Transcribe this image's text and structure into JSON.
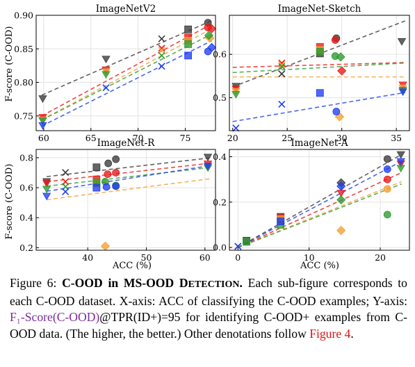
{
  "shared": {
    "ylabel": "F-score (C-OOD)",
    "xlabel": "ACC (%)"
  },
  "series_colors": {
    "black": "#3a3a3a",
    "red": "#e81818",
    "orange": "#f3a030",
    "green": "#2e9a2e",
    "blue": "#1f3ef0"
  },
  "caption": {
    "fig": "Figure 6:",
    "title_a": "C-OOD in MS-OOD D",
    "title_b": "ETECTION",
    "title_c": ".",
    "body1": " Each sub-figure corresponds to each C-OOD dataset. X-axis: ACC of classifying the C-OOD examples; Y-axis: ",
    "metric": "F₁-Score(C-OOD)",
    "body2": "@TPR(ID+)=95 for identifying C-OOD+ examples from C-OOD data. (The higher, the better.) Other denotations follow ",
    "ref": "Figure 4",
    "end": "."
  },
  "chart_data": [
    {
      "type": "scatter",
      "title": "ImageNetV2",
      "xlim": [
        59.2,
        78.2
      ],
      "ylim": [
        0.728,
        0.9
      ],
      "xticks": [
        "60",
        "65",
        "70",
        "75"
      ],
      "xtick_values": [
        60,
        65,
        70,
        75
      ],
      "yticks": [
        "0.75",
        "0.80",
        "0.85",
        "0.90"
      ],
      "ytick_values": [
        0.75,
        0.8,
        0.85,
        0.9
      ],
      "trends": [
        {
          "color": "black",
          "x": [
            59.8,
            77.8
          ],
          "y": [
            0.781,
            0.892
          ]
        },
        {
          "color": "red",
          "x": [
            59.8,
            77.8
          ],
          "y": [
            0.75,
            0.887
          ]
        },
        {
          "color": "orange",
          "x": [
            59.8,
            77.8
          ],
          "y": [
            0.744,
            0.88
          ]
        },
        {
          "color": "green",
          "x": [
            59.8,
            77.8
          ],
          "y": [
            0.744,
            0.872
          ]
        },
        {
          "color": "blue",
          "x": [
            59.8,
            77.8
          ],
          "y": [
            0.735,
            0.862
          ]
        }
      ],
      "points": [
        {
          "color": "black",
          "marker": "tri-down",
          "x": 59.9,
          "y": 0.776
        },
        {
          "color": "black",
          "marker": "tri-down",
          "x": 66.6,
          "y": 0.835
        },
        {
          "color": "black",
          "marker": "x",
          "x": 72.5,
          "y": 0.865
        },
        {
          "color": "black",
          "marker": "square",
          "x": 75.3,
          "y": 0.879
        },
        {
          "color": "black",
          "marker": "circle",
          "x": 77.4,
          "y": 0.889
        },
        {
          "color": "red",
          "marker": "tri-down",
          "x": 59.9,
          "y": 0.748
        },
        {
          "color": "red",
          "marker": "tri-down",
          "x": 66.6,
          "y": 0.819
        },
        {
          "color": "red",
          "marker": "x",
          "x": 72.5,
          "y": 0.851
        },
        {
          "color": "red",
          "marker": "square",
          "x": 75.3,
          "y": 0.867
        },
        {
          "color": "red",
          "marker": "circle",
          "x": 77.4,
          "y": 0.882
        },
        {
          "color": "red",
          "marker": "diamond",
          "x": 77.8,
          "y": 0.88
        },
        {
          "color": "orange",
          "marker": "tri-down",
          "x": 59.9,
          "y": 0.744
        },
        {
          "color": "orange",
          "marker": "tri-down",
          "x": 66.6,
          "y": 0.816
        },
        {
          "color": "orange",
          "marker": "x",
          "x": 72.5,
          "y": 0.848
        },
        {
          "color": "orange",
          "marker": "square",
          "x": 75.3,
          "y": 0.862
        },
        {
          "color": "orange",
          "marker": "diamond",
          "x": 77.6,
          "y": 0.866
        },
        {
          "color": "green",
          "marker": "tri-down",
          "x": 59.9,
          "y": 0.743
        },
        {
          "color": "green",
          "marker": "tri-down",
          "x": 66.6,
          "y": 0.812
        },
        {
          "color": "green",
          "marker": "x",
          "x": 72.5,
          "y": 0.84
        },
        {
          "color": "green",
          "marker": "square",
          "x": 75.3,
          "y": 0.857
        },
        {
          "color": "green",
          "marker": "diamond",
          "x": 77.5,
          "y": 0.87
        },
        {
          "color": "blue",
          "marker": "tri-down",
          "x": 59.9,
          "y": 0.736
        },
        {
          "color": "blue",
          "marker": "x",
          "x": 66.6,
          "y": 0.792
        },
        {
          "color": "blue",
          "marker": "x",
          "x": 72.5,
          "y": 0.824
        },
        {
          "color": "blue",
          "marker": "square",
          "x": 75.3,
          "y": 0.84
        },
        {
          "color": "blue",
          "marker": "circle",
          "x": 77.4,
          "y": 0.846
        },
        {
          "color": "blue",
          "marker": "diamond",
          "x": 77.8,
          "y": 0.852
        }
      ]
    },
    {
      "type": "scatter",
      "title": "ImageNet-Sketch",
      "xlim": [
        19.7,
        36.2
      ],
      "ylim": [
        0.424,
        0.69
      ],
      "xticks": [
        "20",
        "25",
        "30",
        "35"
      ],
      "xtick_values": [
        20,
        25,
        30,
        35
      ],
      "yticks": [
        "0.5",
        "0.6"
      ],
      "ytick_values": [
        0.5,
        0.6
      ],
      "trends": [
        {
          "color": "black",
          "x": [
            20,
            35.8
          ],
          "y": [
            0.525,
            0.677
          ]
        },
        {
          "color": "red",
          "x": [
            20,
            35.8
          ],
          "y": [
            0.57,
            0.581
          ]
        },
        {
          "color": "green",
          "x": [
            20,
            35.8
          ],
          "y": [
            0.558,
            0.58
          ]
        },
        {
          "color": "orange",
          "x": [
            20,
            35.8
          ],
          "y": [
            0.548,
            0.548
          ]
        },
        {
          "color": "blue",
          "x": [
            20,
            35.8
          ],
          "y": [
            0.445,
            0.512
          ]
        }
      ],
      "points": [
        {
          "color": "black",
          "marker": "tri-down",
          "x": 20.3,
          "y": 0.527
        },
        {
          "color": "black",
          "marker": "x",
          "x": 24.5,
          "y": 0.555
        },
        {
          "color": "black",
          "marker": "square",
          "x": 28.0,
          "y": 0.602
        },
        {
          "color": "black",
          "marker": "circle",
          "x": 29.5,
          "y": 0.637
        },
        {
          "color": "black",
          "marker": "tri-down",
          "x": 35.5,
          "y": 0.63
        },
        {
          "color": "red",
          "marker": "tri-down",
          "x": 20.3,
          "y": 0.521
        },
        {
          "color": "red",
          "marker": "x",
          "x": 24.5,
          "y": 0.58
        },
        {
          "color": "red",
          "marker": "square",
          "x": 28.0,
          "y": 0.617
        },
        {
          "color": "red",
          "marker": "circle",
          "x": 29.4,
          "y": 0.633
        },
        {
          "color": "red",
          "marker": "diamond",
          "x": 30.0,
          "y": 0.562
        },
        {
          "color": "red",
          "marker": "tri-down",
          "x": 35.6,
          "y": 0.53
        },
        {
          "color": "orange",
          "marker": "tri-down",
          "x": 20.3,
          "y": 0.515
        },
        {
          "color": "orange",
          "marker": "x",
          "x": 24.5,
          "y": 0.576
        },
        {
          "color": "orange",
          "marker": "square",
          "x": 28.0,
          "y": 0.61
        },
        {
          "color": "orange",
          "marker": "diamond",
          "x": 29.8,
          "y": 0.456
        },
        {
          "color": "orange",
          "marker": "tri-down",
          "x": 35.6,
          "y": 0.523
        },
        {
          "color": "green",
          "marker": "tri-down",
          "x": 20.3,
          "y": 0.508
        },
        {
          "color": "green",
          "marker": "x",
          "x": 24.5,
          "y": 0.572
        },
        {
          "color": "green",
          "marker": "square",
          "x": 28.0,
          "y": 0.606
        },
        {
          "color": "green",
          "marker": "circle",
          "x": 29.4,
          "y": 0.596
        },
        {
          "color": "green",
          "marker": "diamond",
          "x": 29.9,
          "y": 0.594
        },
        {
          "color": "green",
          "marker": "tri-down",
          "x": 35.6,
          "y": 0.518
        },
        {
          "color": "blue",
          "marker": "x",
          "x": 20.3,
          "y": 0.43
        },
        {
          "color": "blue",
          "marker": "x",
          "x": 24.5,
          "y": 0.485
        },
        {
          "color": "blue",
          "marker": "square",
          "x": 28.0,
          "y": 0.511
        },
        {
          "color": "blue",
          "marker": "circle",
          "x": 29.5,
          "y": 0.468
        },
        {
          "color": "blue",
          "marker": "tri-down",
          "x": 35.6,
          "y": 0.514
        }
      ]
    },
    {
      "type": "scatter",
      "title": "ImageNet-R",
      "xlim": [
        31.2,
        61.8
      ],
      "ylim": [
        0.183,
        0.855
      ],
      "xticks": [
        "40",
        "50",
        "60"
      ],
      "xtick_values": [
        40,
        50,
        60
      ],
      "yticks": [
        "0.2",
        "0.4",
        "0.6",
        "0.8"
      ],
      "ytick_values": [
        0.2,
        0.4,
        0.6,
        0.8
      ],
      "trends": [
        {
          "color": "black",
          "x": [
            33,
            61
          ],
          "y": [
            0.674,
            0.799
          ]
        },
        {
          "color": "red",
          "x": [
            33,
            61
          ],
          "y": [
            0.64,
            0.764
          ]
        },
        {
          "color": "green",
          "x": [
            33,
            61
          ],
          "y": [
            0.61,
            0.735
          ]
        },
        {
          "color": "blue",
          "x": [
            33,
            61
          ],
          "y": [
            0.576,
            0.748
          ]
        },
        {
          "color": "orange",
          "x": [
            33,
            61
          ],
          "y": [
            0.52,
            0.66
          ]
        }
      ],
      "points": [
        {
          "color": "black",
          "marker": "tri-down",
          "x": 33.0,
          "y": 0.642
        },
        {
          "color": "black",
          "marker": "x",
          "x": 36.2,
          "y": 0.701
        },
        {
          "color": "black",
          "marker": "square",
          "x": 41.5,
          "y": 0.736
        },
        {
          "color": "black",
          "marker": "circle",
          "x": 43.5,
          "y": 0.762
        },
        {
          "color": "black",
          "marker": "circle",
          "x": 44.8,
          "y": 0.79
        },
        {
          "color": "black",
          "marker": "tri-down",
          "x": 60.5,
          "y": 0.805
        },
        {
          "color": "red",
          "marker": "tri-down",
          "x": 33.0,
          "y": 0.63
        },
        {
          "color": "red",
          "marker": "x",
          "x": 36.2,
          "y": 0.64
        },
        {
          "color": "red",
          "marker": "square",
          "x": 41.5,
          "y": 0.655
        },
        {
          "color": "red",
          "marker": "circle",
          "x": 43.4,
          "y": 0.69
        },
        {
          "color": "red",
          "marker": "circle",
          "x": 44.8,
          "y": 0.7
        },
        {
          "color": "red",
          "marker": "tri-down",
          "x": 60.5,
          "y": 0.76
        },
        {
          "color": "orange",
          "marker": "diamond",
          "x": 43.0,
          "y": 0.21
        },
        {
          "color": "orange",
          "marker": "square",
          "x": 41.5,
          "y": 0.63
        },
        {
          "color": "green",
          "marker": "tri-down",
          "x": 33.0,
          "y": 0.592
        },
        {
          "color": "green",
          "marker": "x",
          "x": 36.2,
          "y": 0.607
        },
        {
          "color": "green",
          "marker": "square",
          "x": 41.5,
          "y": 0.635
        },
        {
          "color": "green",
          "marker": "circle",
          "x": 43.0,
          "y": 0.64
        },
        {
          "color": "green",
          "marker": "circle",
          "x": 44.8,
          "y": 0.614
        },
        {
          "color": "green",
          "marker": "tri-down",
          "x": 60.5,
          "y": 0.734
        },
        {
          "color": "blue",
          "marker": "tri-down",
          "x": 33.0,
          "y": 0.545
        },
        {
          "color": "blue",
          "marker": "x",
          "x": 36.2,
          "y": 0.573
        },
        {
          "color": "blue",
          "marker": "square",
          "x": 41.5,
          "y": 0.6
        },
        {
          "color": "blue",
          "marker": "circle",
          "x": 43.2,
          "y": 0.605
        },
        {
          "color": "blue",
          "marker": "circle",
          "x": 44.8,
          "y": 0.61
        },
        {
          "color": "blue",
          "marker": "tri-down",
          "x": 60.5,
          "y": 0.745
        }
      ]
    },
    {
      "type": "scatter",
      "title": "ImageNet-A",
      "xlim": [
        -1.2,
        24.1
      ],
      "ylim": [
        -0.012,
        0.432
      ],
      "xticks": [
        "0",
        "10",
        "20"
      ],
      "xtick_values": [
        0,
        10,
        20
      ],
      "yticks": [
        "0.0",
        "0.2",
        "0.4"
      ],
      "ytick_values": [
        0.0,
        0.2,
        0.4
      ],
      "trends": [
        {
          "color": "black",
          "x": [
            0,
            23
          ],
          "y": [
            0.0,
            0.41
          ]
        },
        {
          "color": "blue",
          "x": [
            0,
            23
          ],
          "y": [
            0.0,
            0.38
          ]
        },
        {
          "color": "red",
          "x": [
            0,
            23
          ],
          "y": [
            0.0,
            0.33
          ]
        },
        {
          "color": "orange",
          "x": [
            0,
            23
          ],
          "y": [
            0.0,
            0.29
          ]
        },
        {
          "color": "green",
          "x": [
            0,
            23
          ],
          "y": [
            0.0,
            0.28
          ]
        }
      ],
      "points": [
        {
          "color": "black",
          "marker": "x",
          "x": 0.0,
          "y": 0.005
        },
        {
          "color": "black",
          "marker": "square",
          "x": 1.2,
          "y": 0.03
        },
        {
          "color": "black",
          "marker": "square",
          "x": 6.0,
          "y": 0.135
        },
        {
          "color": "black",
          "marker": "diamond",
          "x": 14.5,
          "y": 0.285
        },
        {
          "color": "black",
          "marker": "circle",
          "x": 21.0,
          "y": 0.39
        },
        {
          "color": "black",
          "marker": "tri-down",
          "x": 22.9,
          "y": 0.41
        },
        {
          "color": "red",
          "marker": "square",
          "x": 6.0,
          "y": 0.13
        },
        {
          "color": "red",
          "marker": "tri-down",
          "x": 14.5,
          "y": 0.24
        },
        {
          "color": "red",
          "marker": "circle",
          "x": 21.0,
          "y": 0.3
        },
        {
          "color": "red",
          "marker": "tri-down",
          "x": 22.9,
          "y": 0.37
        },
        {
          "color": "orange",
          "marker": "square",
          "x": 6.0,
          "y": 0.125
        },
        {
          "color": "orange",
          "marker": "diamond",
          "x": 14.5,
          "y": 0.075
        },
        {
          "color": "orange",
          "marker": "circle",
          "x": 21.0,
          "y": 0.258
        },
        {
          "color": "green",
          "marker": "square",
          "x": 1.2,
          "y": 0.025
        },
        {
          "color": "green",
          "marker": "square",
          "x": 6.0,
          "y": 0.1
        },
        {
          "color": "green",
          "marker": "diamond",
          "x": 14.5,
          "y": 0.21
        },
        {
          "color": "green",
          "marker": "circle",
          "x": 21.0,
          "y": 0.145
        },
        {
          "color": "green",
          "marker": "tri-down",
          "x": 22.9,
          "y": 0.35
        },
        {
          "color": "blue",
          "marker": "x",
          "x": 0.0,
          "y": 0.005
        },
        {
          "color": "blue",
          "marker": "square",
          "x": 6.0,
          "y": 0.115
        },
        {
          "color": "blue",
          "marker": "diamond",
          "x": 14.5,
          "y": 0.27
        },
        {
          "color": "blue",
          "marker": "circle",
          "x": 21.0,
          "y": 0.345
        },
        {
          "color": "blue",
          "marker": "tri-down",
          "x": 22.9,
          "y": 0.38
        }
      ]
    }
  ]
}
